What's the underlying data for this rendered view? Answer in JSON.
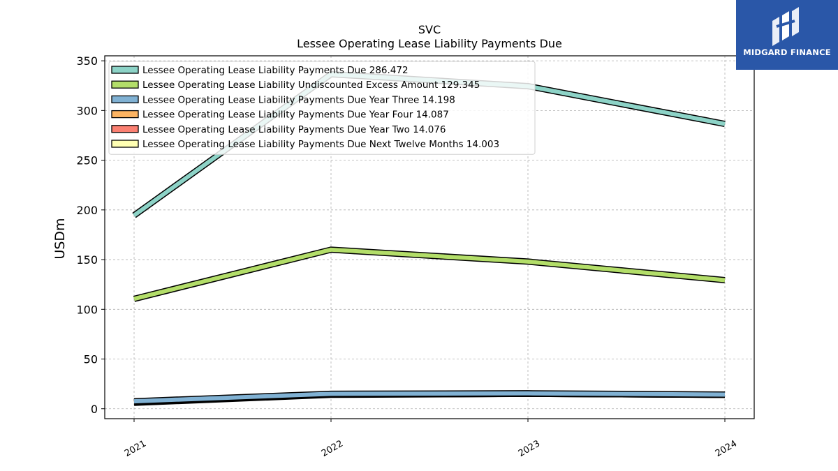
{
  "brand": {
    "name": "MIDGARD FINANCE"
  },
  "chart_data": {
    "type": "line",
    "title": "SVC",
    "subtitle": "Lessee Operating Lease Liability Payments Due",
    "ylabel": "USDm",
    "xlabel": "",
    "x": [
      "2021",
      "2022",
      "2023",
      "2024"
    ],
    "ylim": [
      -10,
      355
    ],
    "yticks": [
      0,
      50,
      100,
      150,
      200,
      250,
      300,
      350
    ],
    "grid": true,
    "legend_position": "top-left",
    "series": [
      {
        "name": "Lessee Operating Lease Liability Payments Due",
        "latest_label": "286.472",
        "color": "#8dd3c7",
        "values": [
          194.5,
          336.5,
          324.5,
          286.472
        ]
      },
      {
        "name": "Lessee Operating Lease Liability Undiscounted Excess Amount",
        "latest_label": "129.345",
        "color": "#b3de69",
        "values": [
          110.5,
          160.0,
          148.0,
          129.345
        ]
      },
      {
        "name": "Lessee Operating Lease Liability Payments Due Year Three",
        "latest_label": "14.198",
        "color": "#80b1d3",
        "values": [
          7.5,
          15.0,
          15.5,
          14.198
        ]
      },
      {
        "name": "Lessee Operating Lease Liability Payments Due Year Four",
        "latest_label": "14.087",
        "color": "#fdb462",
        "values": [
          7.0,
          14.5,
          15.0,
          14.087
        ]
      },
      {
        "name": "Lessee Operating Lease Liability Payments Due Year Two",
        "latest_label": "14.076",
        "color": "#fb8072",
        "values": [
          6.5,
          14.5,
          15.0,
          14.076
        ]
      },
      {
        "name": "Lessee Operating Lease Liability Payments Due Next Twelve Months",
        "latest_label": "14.003",
        "color": "#ffffb3",
        "values": [
          6.0,
          14.0,
          15.0,
          14.003
        ]
      }
    ]
  }
}
